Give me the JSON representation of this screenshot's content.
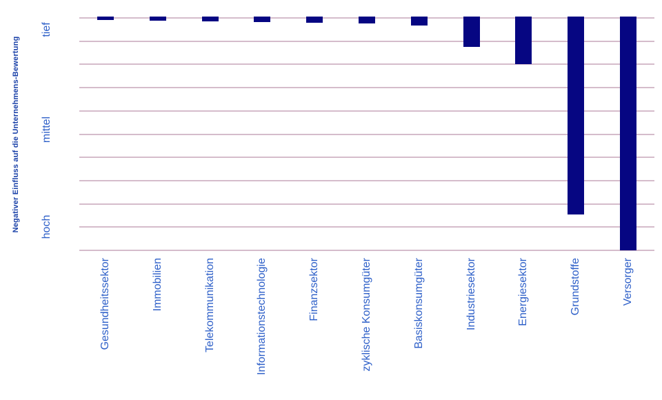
{
  "colors": {
    "background": "#ffffff",
    "bar": "#060682",
    "gridline": "#d5bccb",
    "axis_title_text": "#1a41a8",
    "tick_label_text": "#2d5fc8"
  },
  "chart_data": {
    "type": "bar",
    "orientation": "vertical",
    "title": "",
    "xlabel": "",
    "ylabel": "Negativer Einfluss auf die Unternehmens-Bewertung",
    "legend": "none",
    "grid": "horizontal",
    "gridline_count": 11,
    "ylim": [
      -10,
      0
    ],
    "categories": [
      "Gesundheitssektor",
      "Immobilien",
      "Telekommunikation",
      "Informationstechnologie",
      "Finanzsektor",
      "zyklische Konsumgüter",
      "Basiskonsumgüter",
      "Industriesektor",
      "Energiesektor",
      "Grundstoffe",
      "Versorger"
    ],
    "values": [
      -0.09,
      -0.12,
      -0.15,
      -0.19,
      -0.22,
      -0.25,
      -0.33,
      -1.25,
      -2.0,
      -8.45,
      -10.0
    ],
    "y_tick_labels": [
      {
        "label": "tief",
        "position": -0.5
      },
      {
        "label": "mittel",
        "position": -4.8
      },
      {
        "label": "hoch",
        "position": -9.0
      }
    ]
  }
}
